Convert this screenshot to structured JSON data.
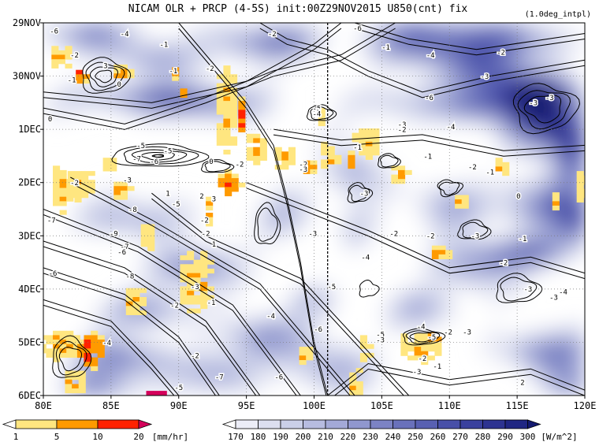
{
  "chart_data": {
    "type": "heatmap",
    "title": "NICAM  OLR + PRCP (4-5S) init:00Z29NOV2015 U850(cnt) fix",
    "note": "(1.0deg_intpl)",
    "xlabel": "",
    "ylabel": "",
    "x_ticks": [
      "80E",
      "85E",
      "90E",
      "95E",
      "100E",
      "105E",
      "110E",
      "115E",
      "120E"
    ],
    "x_range": [
      80,
      120
    ],
    "y_ticks": [
      "29NOV",
      "30NOV",
      "1DEC",
      "2DEC",
      "3DEC",
      "4DEC",
      "5DEC",
      "6DEC"
    ],
    "y_range_days": [
      "29NOV",
      "6DEC"
    ],
    "reference_line_lon": 101,
    "grid": "dotted",
    "olr_colorbar": {
      "levels": [
        "170",
        "180",
        "190",
        "200",
        "210",
        "220",
        "230",
        "240",
        "250",
        "260",
        "270",
        "280",
        "290",
        "300"
      ],
      "unit": "[W/m^2]",
      "colors": [
        "#ffffff",
        "#ecedf7",
        "#dcdff0",
        "#cacfe8",
        "#b7bce0",
        "#a3a9d7",
        "#9097ce",
        "#7c83c4",
        "#6971bb",
        "#5860b2",
        "#4850a8",
        "#3a419e",
        "#2d3391",
        "#202683",
        "#141a70"
      ]
    },
    "prcp_colorbar": {
      "levels": [
        "1",
        "5",
        "10",
        "20"
      ],
      "unit": "[mm/hr]",
      "colors": [
        "#ffffff",
        "#ffe680",
        "#ff9a00",
        "#ff2200",
        "#d4005a"
      ]
    },
    "u850_contour_labels": [
      {
        "lon": 80.8,
        "day": 0.2,
        "value": "-6"
      },
      {
        "lon": 86.0,
        "day": 0.25,
        "value": "-4"
      },
      {
        "lon": 88.9,
        "day": 0.45,
        "value": "-1"
      },
      {
        "lon": 82.3,
        "day": 0.65,
        "value": "-2"
      },
      {
        "lon": 84.6,
        "day": 0.85,
        "value": "3"
      },
      {
        "lon": 82.1,
        "day": 1.12,
        "value": "-1"
      },
      {
        "lon": 85.6,
        "day": 1.2,
        "value": "0"
      },
      {
        "lon": 89.6,
        "day": 0.95,
        "value": "-1"
      },
      {
        "lon": 92.3,
        "day": 0.9,
        "value": "-2"
      },
      {
        "lon": 96.9,
        "day": 0.25,
        "value": "-2"
      },
      {
        "lon": 100.2,
        "day": 1.65,
        "value": "-5"
      },
      {
        "lon": 100.2,
        "day": 1.75,
        "value": "-4"
      },
      {
        "lon": 103.2,
        "day": 0.15,
        "value": "-6"
      },
      {
        "lon": 105.3,
        "day": 0.5,
        "value": "-1"
      },
      {
        "lon": 108.6,
        "day": 0.65,
        "value": "-4"
      },
      {
        "lon": 113.8,
        "day": 0.6,
        "value": "-2"
      },
      {
        "lon": 112.6,
        "day": 1.05,
        "value": "-3"
      },
      {
        "lon": 108.5,
        "day": 1.45,
        "value": "-6"
      },
      {
        "lon": 117.4,
        "day": 1.45,
        "value": "-3"
      },
      {
        "lon": 116.2,
        "day": 1.55,
        "value": "-3"
      },
      {
        "lon": 80.5,
        "day": 1.85,
        "value": "0"
      },
      {
        "lon": 106.5,
        "day": 1.95,
        "value": "-3"
      },
      {
        "lon": 106.5,
        "day": 2.05,
        "value": "-2"
      },
      {
        "lon": 110.1,
        "day": 2.0,
        "value": "-4"
      },
      {
        "lon": 87.2,
        "day": 2.35,
        "value": "-5"
      },
      {
        "lon": 89.2,
        "day": 2.45,
        "value": "-5"
      },
      {
        "lon": 86.9,
        "day": 2.6,
        "value": "-7"
      },
      {
        "lon": 88.2,
        "day": 2.65,
        "value": "-6"
      },
      {
        "lon": 92.4,
        "day": 2.65,
        "value": "0"
      },
      {
        "lon": 94.5,
        "day": 2.7,
        "value": "-2"
      },
      {
        "lon": 103.2,
        "day": 2.38,
        "value": "-1"
      },
      {
        "lon": 99.2,
        "day": 2.7,
        "value": "-2"
      },
      {
        "lon": 99.2,
        "day": 2.8,
        "value": "-3"
      },
      {
        "lon": 108.4,
        "day": 2.55,
        "value": "-1"
      },
      {
        "lon": 111.7,
        "day": 2.75,
        "value": "-2"
      },
      {
        "lon": 113.0,
        "day": 2.85,
        "value": "-1"
      },
      {
        "lon": 82.3,
        "day": 3.05,
        "value": "-2"
      },
      {
        "lon": 86.2,
        "day": 3.0,
        "value": "-3"
      },
      {
        "lon": 89.2,
        "day": 3.25,
        "value": "1"
      },
      {
        "lon": 91.7,
        "day": 3.3,
        "value": "2"
      },
      {
        "lon": 92.6,
        "day": 3.35,
        "value": "3"
      },
      {
        "lon": 91.9,
        "day": 3.75,
        "value": "-2"
      },
      {
        "lon": 103.7,
        "day": 3.25,
        "value": "-3"
      },
      {
        "lon": 115.1,
        "day": 3.3,
        "value": "0"
      },
      {
        "lon": 89.8,
        "day": 3.45,
        "value": "-5"
      },
      {
        "lon": 86.6,
        "day": 3.55,
        "value": "-8"
      },
      {
        "lon": 80.6,
        "day": 3.75,
        "value": "-7"
      },
      {
        "lon": 85.2,
        "day": 4.0,
        "value": "-9"
      },
      {
        "lon": 92.0,
        "day": 4.0,
        "value": "-2"
      },
      {
        "lon": 99.9,
        "day": 4.0,
        "value": "-3"
      },
      {
        "lon": 105.9,
        "day": 4.0,
        "value": "-2"
      },
      {
        "lon": 108.6,
        "day": 4.05,
        "value": "-2"
      },
      {
        "lon": 111.9,
        "day": 4.05,
        "value": "-3"
      },
      {
        "lon": 115.4,
        "day": 4.1,
        "value": "-1"
      },
      {
        "lon": 86.0,
        "day": 4.25,
        "value": "-7"
      },
      {
        "lon": 85.8,
        "day": 4.35,
        "value": "-6"
      },
      {
        "lon": 92.6,
        "day": 4.2,
        "value": "1"
      },
      {
        "lon": 103.8,
        "day": 4.45,
        "value": "-4"
      },
      {
        "lon": 114.0,
        "day": 4.55,
        "value": "-2"
      },
      {
        "lon": 80.7,
        "day": 4.75,
        "value": "-6"
      },
      {
        "lon": 86.4,
        "day": 4.8,
        "value": "-8"
      },
      {
        "lon": 91.2,
        "day": 5.0,
        "value": "-3"
      },
      {
        "lon": 101.3,
        "day": 5.0,
        "value": "-5"
      },
      {
        "lon": 115.8,
        "day": 5.05,
        "value": "-3"
      },
      {
        "lon": 118.4,
        "day": 5.1,
        "value": "-4"
      },
      {
        "lon": 89.7,
        "day": 5.35,
        "value": "-2"
      },
      {
        "lon": 92.4,
        "day": 5.3,
        "value": "-1"
      },
      {
        "lon": 96.8,
        "day": 5.55,
        "value": "-4"
      },
      {
        "lon": 117.7,
        "day": 5.2,
        "value": "-3"
      },
      {
        "lon": 100.3,
        "day": 5.8,
        "value": "-6"
      },
      {
        "lon": 107.9,
        "day": 5.75,
        "value": "-4"
      },
      {
        "lon": 109.9,
        "day": 5.85,
        "value": "-2"
      },
      {
        "lon": 111.3,
        "day": 5.85,
        "value": "-3"
      },
      {
        "lon": 104.9,
        "day": 5.9,
        "value": "-5"
      },
      {
        "lon": 104.9,
        "day": 6.0,
        "value": "-3"
      },
      {
        "lon": 108.7,
        "day": 5.95,
        "value": "-5"
      },
      {
        "lon": 84.7,
        "day": 6.05,
        "value": "-4"
      },
      {
        "lon": 91.2,
        "day": 6.3,
        "value": "-2"
      },
      {
        "lon": 108.0,
        "day": 6.35,
        "value": "-2"
      },
      {
        "lon": 109.1,
        "day": 6.5,
        "value": "-1"
      },
      {
        "lon": 93.0,
        "day": 6.7,
        "value": "-7"
      },
      {
        "lon": 97.4,
        "day": 6.7,
        "value": "-6"
      },
      {
        "lon": 107.6,
        "day": 6.6,
        "value": "-3"
      },
      {
        "lon": 115.4,
        "day": 6.8,
        "value": "2"
      },
      {
        "lon": 90.0,
        "day": 6.9,
        "value": "-5"
      }
    ]
  }
}
